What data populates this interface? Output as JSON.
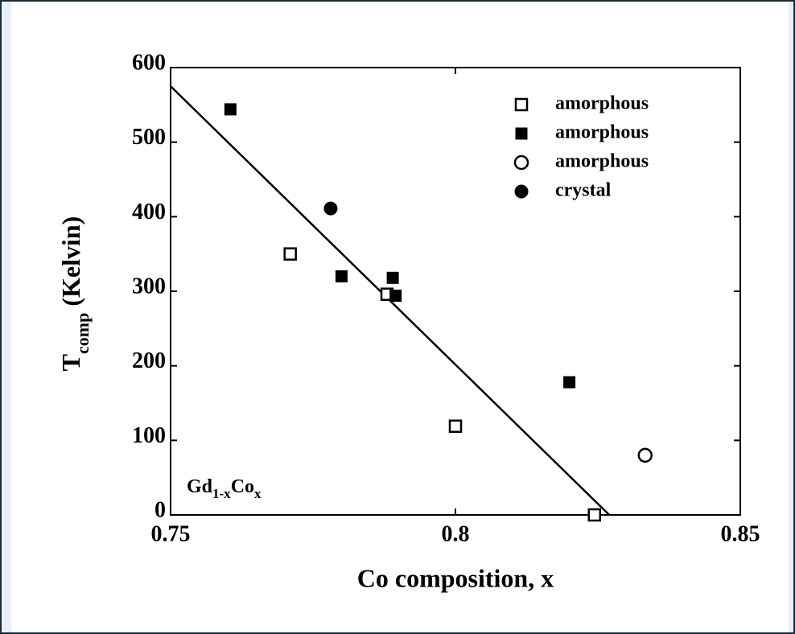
{
  "chart_data": {
    "type": "scatter",
    "xlabel": "Co composition, x",
    "ylabel": [
      {
        "text": "T"
      },
      {
        "text": "comp",
        "sub": true
      },
      {
        "text": " (Kelvin)"
      }
    ],
    "annotation": [
      {
        "text": "Gd"
      },
      {
        "text": "1-x",
        "sub": true
      },
      {
        "text": "Co"
      },
      {
        "text": "x",
        "sub": true
      }
    ],
    "xlim": [
      0.75,
      0.85
    ],
    "xticks": [
      0.75,
      0.8,
      0.85
    ],
    "ylim": [
      0,
      600
    ],
    "yticks": [
      0,
      100,
      200,
      300,
      400,
      500,
      600
    ],
    "series": [
      {
        "name": "amorphous",
        "marker": "square-open",
        "color": "#000000",
        "x": [
          0.771,
          0.788,
          0.8,
          0.8244
        ],
        "values": [
          350,
          296,
          119,
          0
        ]
      },
      {
        "name": "amorphous",
        "marker": "square",
        "color": "#000000",
        "x": [
          0.7605,
          0.78,
          0.789,
          0.7895,
          0.82
        ],
        "values": [
          544,
          320,
          318,
          294,
          178
        ]
      },
      {
        "name": "amorphous",
        "marker": "circle-open",
        "color": "#000000",
        "x": [
          0.8333
        ],
        "values": [
          80
        ]
      },
      {
        "name": "crystal",
        "marker": "circle",
        "color": "#000000",
        "x": [
          0.7781
        ],
        "values": [
          411
        ]
      }
    ],
    "fit": {
      "x": [
        0.75,
        0.827
      ],
      "values": [
        575,
        0
      ],
      "color": "#000000"
    }
  }
}
